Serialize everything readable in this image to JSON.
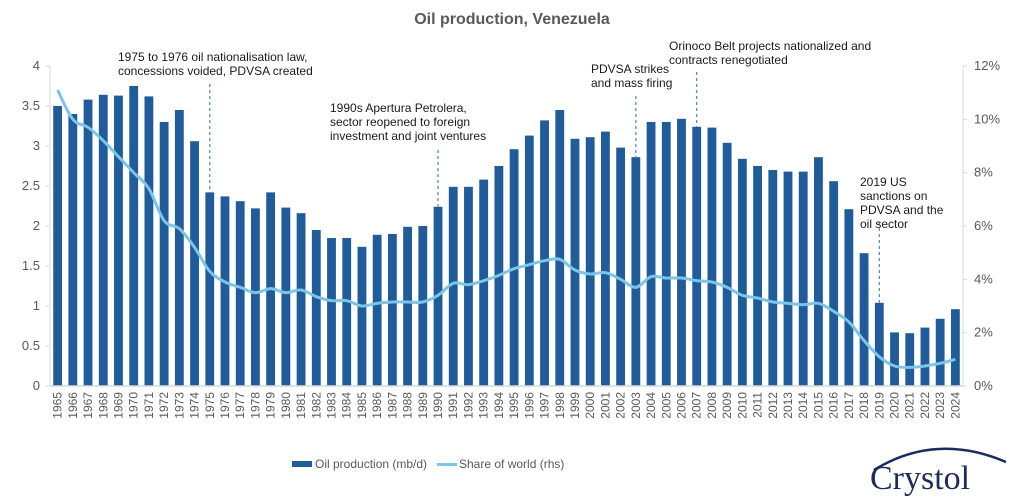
{
  "chart_data": {
    "type": "bar",
    "title": "Oil production, Venezuela",
    "xlabel": "",
    "ylabel": "",
    "ylim": [
      0,
      4
    ],
    "y_ticks": [
      "0",
      "0.5",
      "1",
      "1.5",
      "2",
      "2.5",
      "3",
      "3.5",
      "4"
    ],
    "y_tick_values": [
      0,
      0.5,
      1,
      1.5,
      2,
      2.5,
      3,
      3.5,
      4
    ],
    "y2lim": [
      0,
      12
    ],
    "y2_ticks": [
      "0%",
      "2%",
      "4%",
      "6%",
      "8%",
      "10%",
      "12%"
    ],
    "y2_tick_values": [
      0,
      2,
      4,
      6,
      8,
      10,
      12
    ],
    "grid": false,
    "legend_position": "bottom",
    "categories": [
      "1965",
      "1966",
      "1967",
      "1968",
      "1969",
      "1970",
      "1971",
      "1972",
      "1973",
      "1974",
      "1975",
      "1976",
      "1977",
      "1978",
      "1979",
      "1980",
      "1981",
      "1982",
      "1983",
      "1984",
      "1985",
      "1986",
      "1987",
      "1988",
      "1989",
      "1990",
      "1991",
      "1992",
      "1993",
      "1994",
      "1995",
      "1996",
      "1997",
      "1998",
      "1999",
      "2000",
      "2001",
      "2002",
      "2003",
      "2004",
      "2005",
      "2006",
      "2007",
      "2008",
      "2009",
      "2010",
      "2011",
      "2012",
      "2013",
      "2014",
      "2015",
      "2016",
      "2017",
      "2018",
      "2019",
      "2020",
      "2021",
      "2022",
      "2023",
      "2024"
    ],
    "series": [
      {
        "name": "Oil production (mb/d)",
        "type": "bar",
        "axis": "left",
        "color": "#1f5c99",
        "values": [
          3.5,
          3.4,
          3.58,
          3.64,
          3.63,
          3.75,
          3.62,
          3.3,
          3.45,
          3.06,
          2.42,
          2.37,
          2.31,
          2.22,
          2.42,
          2.23,
          2.16,
          1.95,
          1.85,
          1.85,
          1.74,
          1.89,
          1.9,
          1.99,
          2.0,
          2.24,
          2.49,
          2.49,
          2.58,
          2.75,
          2.96,
          3.13,
          3.32,
          3.45,
          3.09,
          3.11,
          3.18,
          2.98,
          2.86,
          3.3,
          3.3,
          3.34,
          3.24,
          3.23,
          3.04,
          2.84,
          2.75,
          2.7,
          2.68,
          2.68,
          2.86,
          2.56,
          2.21,
          1.66,
          1.04,
          0.67,
          0.66,
          0.73,
          0.84,
          0.96
        ]
      },
      {
        "name": "Share of world (rhs)",
        "type": "line",
        "axis": "right",
        "unit": "%",
        "color": "#7cc5ea",
        "values": [
          11.1,
          10.0,
          9.7,
          9.2,
          8.6,
          8.0,
          7.4,
          6.2,
          5.9,
          5.2,
          4.3,
          3.9,
          3.7,
          3.5,
          3.65,
          3.5,
          3.6,
          3.35,
          3.2,
          3.2,
          3.0,
          3.1,
          3.15,
          3.15,
          3.15,
          3.4,
          3.85,
          3.8,
          3.95,
          4.15,
          4.4,
          4.55,
          4.7,
          4.75,
          4.35,
          4.2,
          4.25,
          4.0,
          3.7,
          4.1,
          4.05,
          4.05,
          3.95,
          3.9,
          3.7,
          3.4,
          3.3,
          3.15,
          3.1,
          3.05,
          3.1,
          2.8,
          2.4,
          1.7,
          1.1,
          0.75,
          0.7,
          0.75,
          0.85,
          1.0
        ]
      }
    ],
    "annotations": [
      {
        "year": "1975",
        "lines": [
          "1975 to 1976 oil nationalisation law,",
          "concessions voided, PDVSA created"
        ]
      },
      {
        "year": "1990",
        "lines": [
          "1990s Apertura Petrolera,",
          "sector reopened to foreign",
          "investment and joint ventures"
        ]
      },
      {
        "year": "2003",
        "lines": [
          "PDVSA strikes",
          "and mass firing"
        ]
      },
      {
        "year": "2007",
        "lines": [
          "Orinoco Belt projects nationalized and",
          "contracts renegotiated"
        ]
      },
      {
        "year": "2019",
        "lines": [
          "2019 US",
          "sanctions on",
          "PDVSA and the",
          "oil sector"
        ]
      }
    ]
  },
  "branding": {
    "logo_text": "Crystol"
  }
}
